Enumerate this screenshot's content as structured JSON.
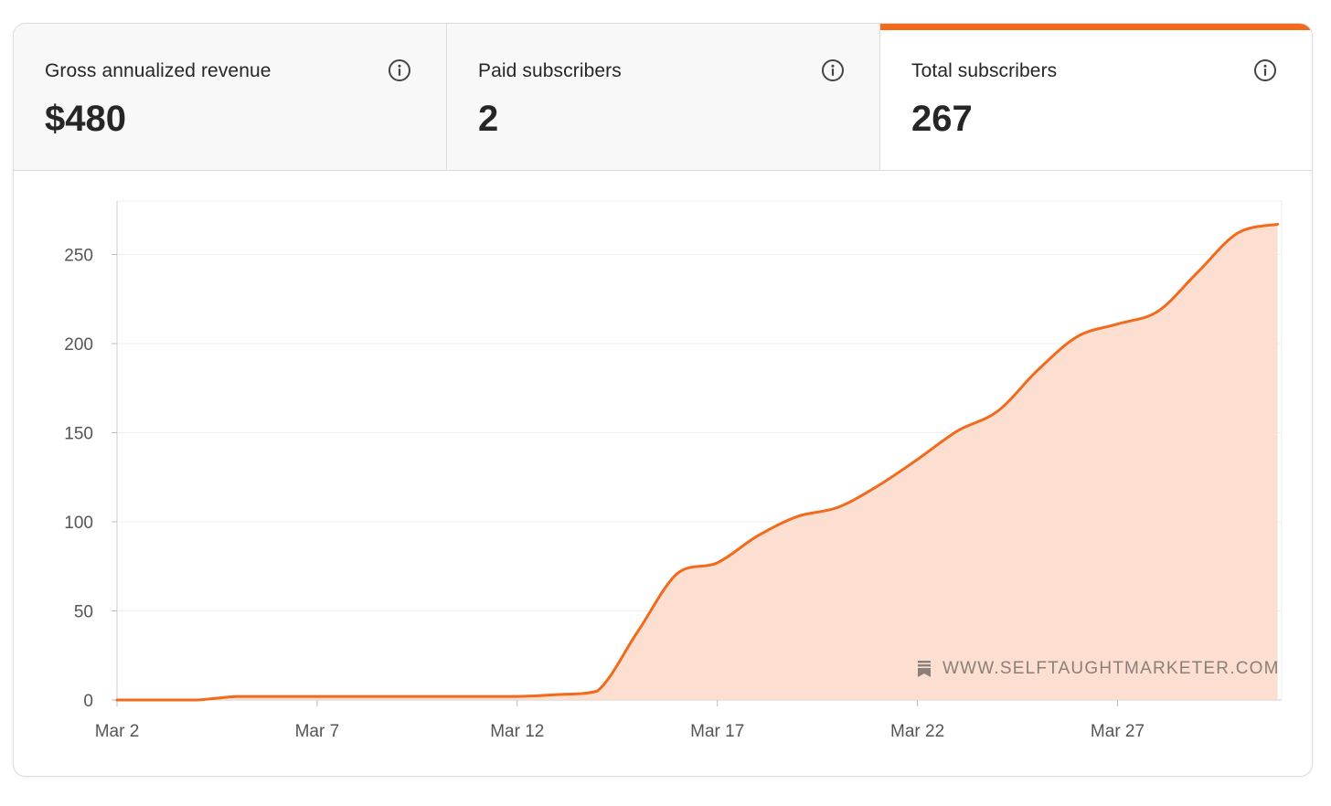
{
  "colors": {
    "accent": "#f26a1b",
    "fill": "#fcd9c9"
  },
  "tabs": [
    {
      "label": "Gross annualized revenue",
      "value": "$480",
      "active": false
    },
    {
      "label": "Paid subscribers",
      "value": "2",
      "active": false
    },
    {
      "label": "Total subscribers",
      "value": "267",
      "active": true
    }
  ],
  "watermark": {
    "text": "WWW.SELFTAUGHTMARKETER.COM",
    "icon": "bookmark-icon"
  },
  "chart_data": {
    "type": "area",
    "title": "",
    "xlabel": "",
    "ylabel": "",
    "x_tick_labels": [
      "Mar 2",
      "Mar 7",
      "Mar 12",
      "Mar 17",
      "Mar 22",
      "Mar 27"
    ],
    "y_ticks": [
      0,
      50,
      100,
      150,
      200,
      250
    ],
    "ylim": [
      0,
      280
    ],
    "grid": true,
    "series": [
      {
        "x": [
          "Mar 2",
          "Mar 3",
          "Mar 4",
          "Mar 5",
          "Mar 6",
          "Mar 7",
          "Mar 8",
          "Mar 9",
          "Mar 10",
          "Mar 11",
          "Mar 12",
          "Mar 13",
          "Mar 14",
          "Mar 15",
          "Mar 16",
          "Mar 17",
          "Mar 18",
          "Mar 19",
          "Mar 20",
          "Mar 21",
          "Mar 22",
          "Mar 23",
          "Mar 24",
          "Mar 25",
          "Mar 26",
          "Mar 27",
          "Mar 28",
          "Mar 29",
          "Mar 30",
          "Mar 31"
        ],
        "values": [
          0,
          0,
          0,
          2,
          2,
          2,
          2,
          2,
          2,
          2,
          2,
          3,
          5,
          38,
          71,
          77,
          92,
          103,
          108,
          120,
          135,
          151,
          162,
          185,
          204,
          211,
          218,
          240,
          262,
          267
        ]
      }
    ]
  }
}
